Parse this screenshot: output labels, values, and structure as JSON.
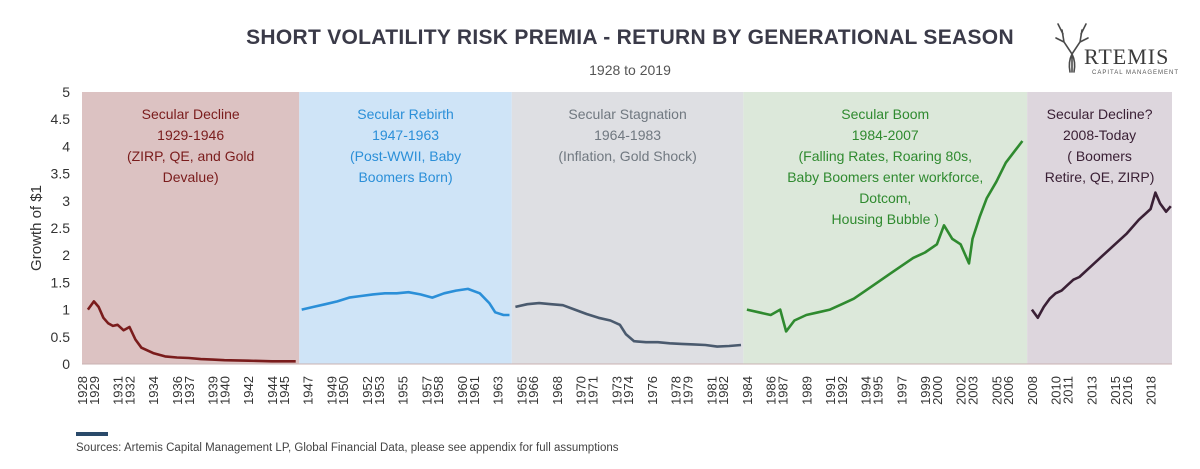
{
  "chart_data": {
    "type": "line",
    "title": "SHORT VOLATILITY RISK PREMIA - RETURN BY GENERATIONAL SEASON",
    "subtitle": "1928 to 2019",
    "ylabel": "Growth of $1",
    "ylim": [
      0,
      5
    ],
    "yticks": [
      "0",
      "0.5",
      "1",
      "1.5",
      "2",
      "2.5",
      "3",
      "3.5",
      "4",
      "4.5",
      "5"
    ],
    "xlim": [
      1928,
      2019.8
    ],
    "xticks": [
      1928,
      1929,
      1931,
      1932,
      1934,
      1936,
      1937,
      1939,
      1940,
      1942,
      1944,
      1945,
      1947,
      1949,
      1950,
      1952,
      1953,
      1955,
      1957,
      1958,
      1960,
      1961,
      1963,
      1965,
      1966,
      1968,
      1970,
      1971,
      1973,
      1974,
      1976,
      1978,
      1979,
      1981,
      1982,
      1984,
      1986,
      1987,
      1989,
      1991,
      1992,
      1994,
      1995,
      1997,
      1999,
      2000,
      2002,
      2003,
      2005,
      2006,
      2008,
      2010,
      2011,
      2013,
      2015,
      2016,
      2018
    ],
    "regions": [
      {
        "start": 1928,
        "end": 1946.3,
        "color": "#dcc2c2",
        "label_color": "#7a1c1c",
        "label": [
          "Secular Decline",
          "1929-1946",
          "(ZIRP, QE, and Gold",
          "Devalue)"
        ]
      },
      {
        "start": 1946.3,
        "end": 1964.2,
        "color": "#cfe4f7",
        "label_color": "#2b8fd8",
        "label": [
          "Secular Rebirth",
          "1947-1963",
          "(Post-WWII,  Baby",
          "Boomers Born)"
        ]
      },
      {
        "start": 1964.2,
        "end": 1983.7,
        "color": "#dedfe3",
        "label_color": "#707880",
        "label": [
          "Secular Stagnation",
          "1964-1983",
          "(Inflation, Gold Shock)"
        ]
      },
      {
        "start": 1983.7,
        "end": 2007.6,
        "color": "#dce8da",
        "label_color": "#2f8a2f",
        "label": [
          "Secular Boom",
          "1984-2007",
          "(Falling Rates, Roaring 80s,",
          "Baby Boomers  enter workforce,",
          "Dotcom,",
          "Housing Bubble )"
        ]
      },
      {
        "start": 2007.6,
        "end": 2019.8,
        "color": "#ddd6dd",
        "label_color": "#3a2035",
        "label": [
          "Secular Decline?",
          "2008-Today",
          "( Boomers",
          "Retire, QE, ZIRP)"
        ]
      }
    ],
    "series": [
      {
        "color": "#7a1c1c",
        "x": [
          1928.5,
          1929.0,
          1929.4,
          1929.8,
          1930.2,
          1930.6,
          1931.0,
          1931.5,
          1932.0,
          1932.5,
          1933.0,
          1934.0,
          1935.0,
          1936.0,
          1937.0,
          1938.0,
          1939.0,
          1940.0,
          1942.0,
          1944.0,
          1946.0
        ],
        "y": [
          1.0,
          1.15,
          1.05,
          0.85,
          0.75,
          0.7,
          0.72,
          0.62,
          0.68,
          0.45,
          0.3,
          0.2,
          0.14,
          0.12,
          0.11,
          0.09,
          0.08,
          0.07,
          0.06,
          0.05,
          0.05
        ]
      },
      {
        "color": "#2b8fd8",
        "x": [
          1946.5,
          1947.5,
          1948.5,
          1949.5,
          1950.5,
          1951.5,
          1952.5,
          1953.5,
          1954.5,
          1955.5,
          1956.5,
          1957.5,
          1958.5,
          1959.5,
          1960.5,
          1961.5,
          1962.3,
          1962.8,
          1963.5,
          1964.0
        ],
        "y": [
          1.0,
          1.05,
          1.1,
          1.15,
          1.22,
          1.25,
          1.28,
          1.3,
          1.3,
          1.32,
          1.28,
          1.22,
          1.3,
          1.35,
          1.38,
          1.3,
          1.12,
          0.95,
          0.9,
          0.9
        ]
      },
      {
        "color": "#4a5a6e",
        "x": [
          1964.5,
          1965.5,
          1966.5,
          1967.5,
          1968.5,
          1969.5,
          1970.5,
          1971.5,
          1972.5,
          1973.3,
          1973.8,
          1974.5,
          1975.5,
          1976.5,
          1977.5,
          1978.5,
          1979.5,
          1980.5,
          1981.5,
          1982.5,
          1983.5
        ],
        "y": [
          1.05,
          1.1,
          1.12,
          1.1,
          1.08,
          1.0,
          0.92,
          0.85,
          0.8,
          0.72,
          0.55,
          0.42,
          0.4,
          0.4,
          0.38,
          0.37,
          0.36,
          0.35,
          0.32,
          0.33,
          0.35
        ]
      },
      {
        "color": "#2f8a2f",
        "x": [
          1984.0,
          1985.0,
          1986.0,
          1986.8,
          1987.3,
          1988.0,
          1989.0,
          1990.0,
          1991.0,
          1992.0,
          1993.0,
          1994.0,
          1995.0,
          1996.0,
          1997.0,
          1998.0,
          1999.0,
          2000.0,
          2000.6,
          2001.3,
          2002.0,
          2002.7,
          2003.0,
          2003.6,
          2004.2,
          2005.0,
          2005.8,
          2006.5,
          2007.2
        ],
        "y": [
          1.0,
          0.95,
          0.9,
          1.0,
          0.6,
          0.8,
          0.9,
          0.95,
          1.0,
          1.1,
          1.2,
          1.35,
          1.5,
          1.65,
          1.8,
          1.95,
          2.05,
          2.2,
          2.55,
          2.3,
          2.2,
          1.85,
          2.3,
          2.7,
          3.05,
          3.35,
          3.7,
          3.9,
          4.1
        ]
      },
      {
        "color": "#3a2035",
        "x": [
          2008.0,
          2008.5,
          2009.0,
          2009.5,
          2010.0,
          2010.5,
          2011.0,
          2011.5,
          2012.0,
          2013.0,
          2014.0,
          2015.0,
          2016.0,
          2017.0,
          2018.0,
          2018.4,
          2018.8,
          2019.3,
          2019.7
        ],
        "y": [
          1.0,
          0.85,
          1.05,
          1.2,
          1.3,
          1.35,
          1.45,
          1.55,
          1.6,
          1.8,
          2.0,
          2.2,
          2.4,
          2.65,
          2.85,
          3.15,
          2.95,
          2.8,
          2.9
        ]
      }
    ],
    "legend_marker_color": "#2a4a6a",
    "source": "Sources: Artemis Capital Management  LP, Global Financial Data, please see appendix  for full assumptions"
  },
  "logo": {
    "name": "RTEMIS",
    "sub": "CAPITAL MANAGEMENT"
  }
}
